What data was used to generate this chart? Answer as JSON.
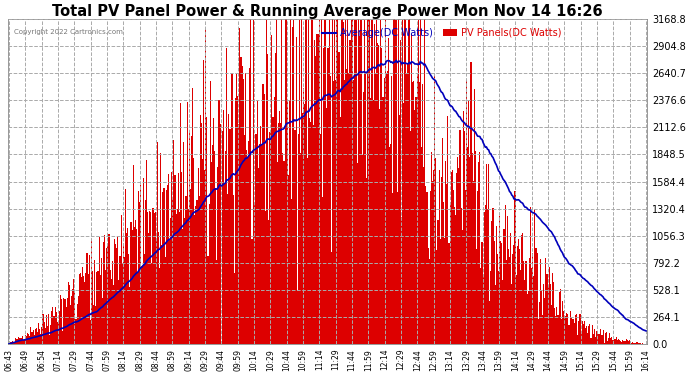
{
  "title": "Total PV Panel Power & Running Average Power Mon Nov 14 16:26",
  "copyright": "Copyright 2022 Cartronics.com",
  "legend_avg": "Average(DC Watts)",
  "legend_pv": "PV Panels(DC Watts)",
  "ymax": 3168.8,
  "ymin": 0.0,
  "yticks": [
    0.0,
    264.1,
    528.1,
    792.2,
    1056.3,
    1320.4,
    1584.4,
    1848.5,
    2112.6,
    2376.6,
    2640.7,
    2904.8,
    3168.8
  ],
  "bg_color": "#ffffff",
  "plot_bg_color": "#ffffff",
  "grid_color": "#aaaaaa",
  "bar_color": "#dd0000",
  "avg_line_color": "#0000bb",
  "title_fontsize": 10.5,
  "x_times": [
    "06:43",
    "06:49",
    "06:54",
    "07:14",
    "07:29",
    "07:44",
    "07:59",
    "08:14",
    "08:29",
    "08:44",
    "08:59",
    "09:14",
    "09:29",
    "09:44",
    "09:59",
    "10:14",
    "10:29",
    "10:44",
    "10:59",
    "11:14",
    "11:29",
    "11:44",
    "11:59",
    "12:14",
    "12:29",
    "12:44",
    "12:59",
    "13:14",
    "13:29",
    "13:44",
    "13:59",
    "14:14",
    "14:29",
    "14:44",
    "14:59",
    "15:14",
    "15:29",
    "15:44",
    "15:59",
    "16:14"
  ]
}
